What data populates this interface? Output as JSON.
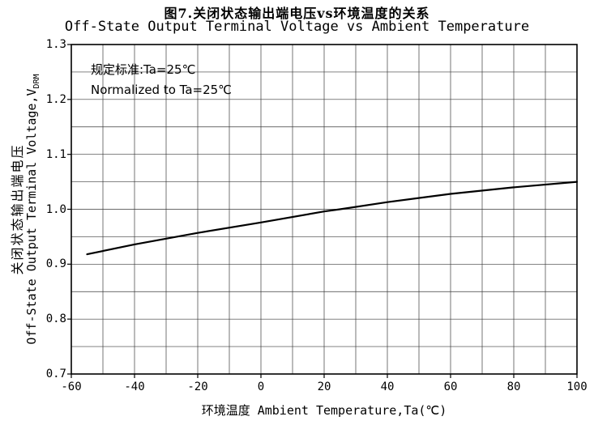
{
  "title_cn": "图7.关闭状态输出端电压vs环境温度的关系",
  "title_en": "Off-State Output Terminal Voltage vs Ambient Temperature",
  "annotation": {
    "line1": "规定标准:Ta=25℃",
    "line2": "Normalized to Ta=25℃"
  },
  "y_axis": {
    "label_cn": "关闭状态输出端电压",
    "label_en_main": "Off-State Output Terminal Voltage,V",
    "label_en_sub": "DRM",
    "ticks": [
      "1.3",
      "1.2",
      "1.1",
      "1.0",
      "0.9",
      "0.8",
      "0.7"
    ]
  },
  "x_axis": {
    "label": "环境温度 Ambient Temperature,Ta(℃)",
    "ticks": [
      "-60",
      "-40",
      "-20",
      "0",
      "20",
      "40",
      "60",
      "80",
      "100"
    ]
  },
  "chart_data": {
    "type": "line",
    "title": "Off-State Output Terminal Voltage vs Ambient Temperature",
    "xlabel": "环境温度 Ambient Temperature,Ta(℃)",
    "ylabel": "Off-State Output Terminal Voltage,VDRM",
    "x": [
      -55,
      -40,
      -20,
      0,
      20,
      25,
      40,
      60,
      80,
      100
    ],
    "y": [
      0.918,
      0.936,
      0.957,
      0.976,
      0.996,
      1.0,
      1.013,
      1.028,
      1.04,
      1.05
    ],
    "xlim": [
      -60,
      100
    ],
    "ylim": [
      0.7,
      1.3
    ],
    "x_major_step": 20,
    "x_minor_step": 10,
    "y_major_step": 0.1,
    "y_minor_step": 0.05,
    "grid": true,
    "legend_position": "none",
    "line_color": "#000000",
    "grid_color": "#3a3a3a",
    "border_color": "#000000"
  }
}
